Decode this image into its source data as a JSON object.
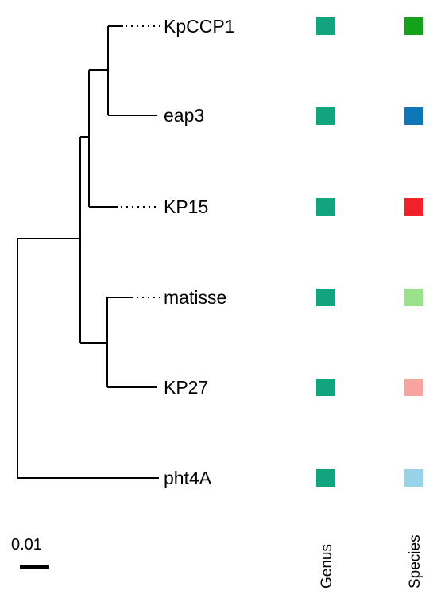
{
  "tree": {
    "leaves": [
      {
        "id": "kpccp1",
        "label": "KpCCP1",
        "dotted": true
      },
      {
        "id": "eap3",
        "label": "eap3",
        "dotted": false
      },
      {
        "id": "kp15",
        "label": "KP15",
        "dotted": true
      },
      {
        "id": "matisse",
        "label": "matisse",
        "dotted": true
      },
      {
        "id": "kp27",
        "label": "KP27",
        "dotted": false
      },
      {
        "id": "pht4a",
        "label": "pht4A",
        "dotted": false
      }
    ],
    "scale_bar": {
      "label": "0.01",
      "value": 0.01
    }
  },
  "annotations": {
    "columns": [
      {
        "id": "genus",
        "label": "Genus"
      },
      {
        "id": "species",
        "label": "Species"
      }
    ],
    "genus_colors": [
      "#12a37f",
      "#12a37f",
      "#12a37f",
      "#12a37f",
      "#12a37f",
      "#12a37f"
    ],
    "species_colors": [
      "#14a21a",
      "#0f77b8",
      "#f2202a",
      "#9be08b",
      "#f7a3a0",
      "#98d2e6"
    ]
  }
}
